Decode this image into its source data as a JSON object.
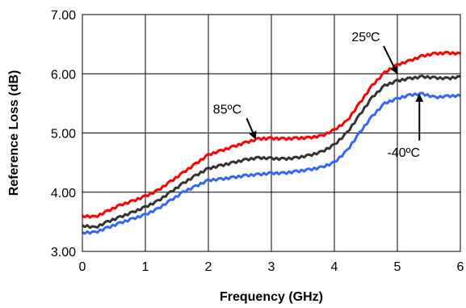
{
  "chart_data": {
    "type": "line",
    "title": "",
    "xlabel": "Frequency (GHz)",
    "ylabel": "Reference Loss (dB)",
    "xlim": [
      0,
      6
    ],
    "ylim": [
      3.0,
      7.0
    ],
    "x_ticks": [
      0,
      1,
      2,
      3,
      4,
      5,
      6
    ],
    "y_ticks": [
      3.0,
      4.0,
      5.0,
      6.0,
      7.0
    ],
    "x_tick_labels": [
      "0",
      "1",
      "2",
      "3",
      "4",
      "5",
      "6"
    ],
    "y_tick_labels": [
      "3.00",
      "4.00",
      "5.00",
      "6.00",
      "7.00"
    ],
    "grid": true,
    "legend": "none",
    "x": [
      0.0,
      0.2,
      0.4,
      0.6,
      0.8,
      1.0,
      1.2,
      1.4,
      1.6,
      1.8,
      2.0,
      2.2,
      2.4,
      2.6,
      2.8,
      3.0,
      3.2,
      3.4,
      3.6,
      3.8,
      4.0,
      4.2,
      4.4,
      4.6,
      4.8,
      5.0,
      5.2,
      5.4,
      5.6,
      5.8,
      6.0
    ],
    "series": [
      {
        "color": "#ff0000",
        "values": [
          3.6,
          3.58,
          3.68,
          3.78,
          3.85,
          3.93,
          4.03,
          4.18,
          4.33,
          4.48,
          4.63,
          4.7,
          4.77,
          4.84,
          4.9,
          4.91,
          4.9,
          4.91,
          4.92,
          4.95,
          5.05,
          5.2,
          5.5,
          5.8,
          6.02,
          6.15,
          6.22,
          6.3,
          6.34,
          6.35,
          6.34
        ]
      },
      {
        "color": "#333333",
        "values": [
          3.44,
          3.4,
          3.5,
          3.58,
          3.66,
          3.75,
          3.85,
          4.0,
          4.15,
          4.28,
          4.4,
          4.45,
          4.5,
          4.55,
          4.58,
          4.57,
          4.56,
          4.58,
          4.62,
          4.68,
          4.8,
          5.0,
          5.3,
          5.6,
          5.8,
          5.88,
          5.92,
          5.95,
          5.93,
          5.92,
          5.95
        ]
      },
      {
        "color": "#3366ff",
        "values": [
          3.32,
          3.32,
          3.4,
          3.48,
          3.55,
          3.62,
          3.72,
          3.86,
          4.0,
          4.1,
          4.2,
          4.22,
          4.25,
          4.28,
          4.3,
          4.32,
          4.32,
          4.35,
          4.38,
          4.42,
          4.5,
          4.7,
          5.0,
          5.28,
          5.5,
          5.58,
          5.64,
          5.66,
          5.6,
          5.62,
          5.63
        ]
      }
    ],
    "annotations": [
      {
        "text": "85ºC",
        "x": 2.3,
        "y": 5.33,
        "arrow_to": [
          2.75,
          4.9
        ]
      },
      {
        "text": "25ºC",
        "x": 4.5,
        "y": 6.55,
        "arrow_to": [
          5.0,
          6.0
        ]
      },
      {
        "text": "-40ºC",
        "x": 5.1,
        "y": 4.6,
        "arrow_to": [
          5.35,
          5.65
        ]
      }
    ]
  }
}
